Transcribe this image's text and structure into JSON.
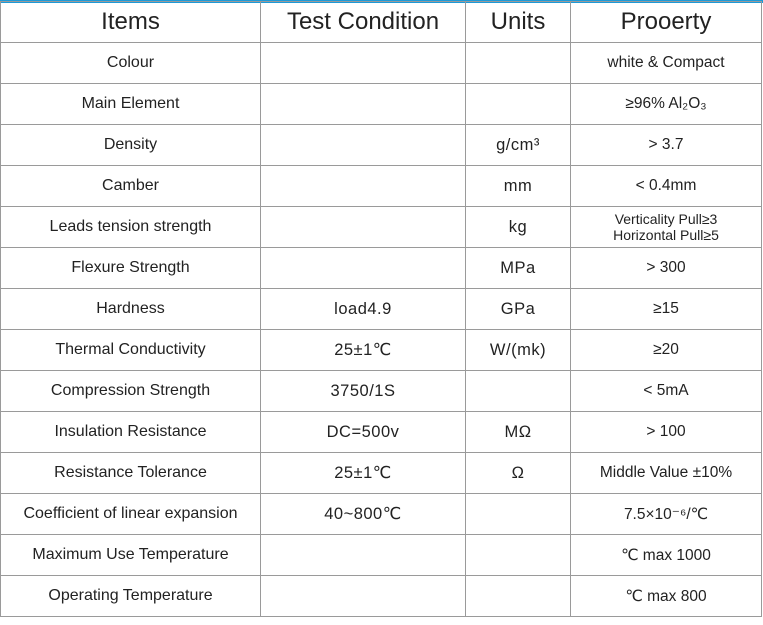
{
  "colors": {
    "top_bar": "#1c9ad8",
    "grid": "#9a9a9a",
    "text": "#222222"
  },
  "headers": [
    "Items",
    "Test Condition",
    "Units",
    "Prooerty"
  ],
  "rows": [
    {
      "item": "Colour",
      "condition": "",
      "unit": "",
      "property": "white & Compact"
    },
    {
      "item": "Main Element",
      "condition": "",
      "unit": "",
      "property": "≥96% Al₂O₃"
    },
    {
      "item": "Density",
      "condition": "",
      "unit": "g/cm³",
      "property": "> 3.7"
    },
    {
      "item": "Camber",
      "condition": "",
      "unit": "mm",
      "property": "< 0.4mm"
    },
    {
      "item": "Leads tension strength",
      "condition": "",
      "unit": "kg",
      "property": "Verticality Pull≥3\nHorizontal Pull≥5"
    },
    {
      "item": "Flexure Strength",
      "condition": "",
      "unit": "MPa",
      "property": "> 300"
    },
    {
      "item": "Hardness",
      "condition": "load4.9",
      "unit": "GPa",
      "property": "≥15"
    },
    {
      "item": "Thermal Conductivity",
      "condition": "25±1℃",
      "unit": "W/(mk)",
      "property": "≥20"
    },
    {
      "item": "Compression Strength",
      "condition": "3750/1S",
      "unit": "",
      "property": "< 5mA"
    },
    {
      "item": "Insulation Resistance",
      "condition": "DC=500v",
      "unit": "MΩ",
      "property": "> 100"
    },
    {
      "item": "Resistance Tolerance",
      "condition": "25±1℃",
      "unit": "Ω",
      "property": "Middle Value ±10%"
    },
    {
      "item": "Coefficient of linear expansion",
      "condition": "40~800℃",
      "unit": "",
      "property": "7.5×10⁻⁶/℃"
    },
    {
      "item": "Maximum Use Temperature",
      "condition": "",
      "unit": "",
      "property": "℃ max  1000"
    },
    {
      "item": "Operating Temperature",
      "condition": "",
      "unit": "",
      "property": "℃ max  800"
    }
  ]
}
